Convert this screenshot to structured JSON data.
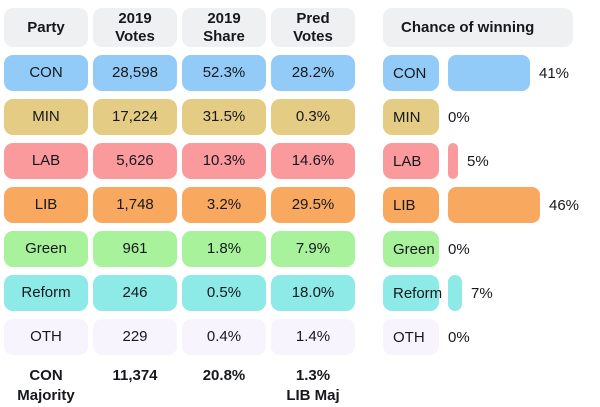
{
  "colors": {
    "CON": "#93cbf8",
    "MIN": "#e4cc85",
    "LAB": "#fb9a9d",
    "LIB": "#f9a95f",
    "Green": "#a7f29b",
    "Reform": "#8deae7",
    "OTH": "#f8f4fd",
    "header_bg": "#eef0f2",
    "text": "#16181c"
  },
  "table": {
    "headers": [
      {
        "line1": "Party",
        "line2": ""
      },
      {
        "line1": "2019",
        "line2": "Votes"
      },
      {
        "line1": "2019",
        "line2": "Share"
      },
      {
        "line1": "Pred",
        "line2": "Votes"
      }
    ],
    "rows": [
      {
        "party": "CON",
        "votes": "28,598",
        "share": "52.3%",
        "pred": "28.2%"
      },
      {
        "party": "MIN",
        "votes": "17,224",
        "share": "31.5%",
        "pred": "0.3%"
      },
      {
        "party": "LAB",
        "votes": "5,626",
        "share": "10.3%",
        "pred": "14.6%"
      },
      {
        "party": "LIB",
        "votes": "1,748",
        "share": "3.2%",
        "pred": "29.5%"
      },
      {
        "party": "Green",
        "votes": "961",
        "share": "1.8%",
        "pred": "7.9%"
      },
      {
        "party": "Reform",
        "votes": "246",
        "share": "0.5%",
        "pred": "18.0%"
      },
      {
        "party": "OTH",
        "votes": "229",
        "share": "0.4%",
        "pred": "1.4%"
      }
    ],
    "footer": {
      "label_line1": "CON",
      "label_line2": "Majority",
      "votes": "11,374",
      "share": "20.8%",
      "pred_line1": "1.3%",
      "pred_line2": "LIB Maj"
    }
  },
  "chart_data": {
    "type": "bar",
    "title": "Chance of winning",
    "orientation": "horizontal",
    "categories": [
      "CON",
      "MIN",
      "LAB",
      "LIB",
      "Green",
      "Reform",
      "OTH"
    ],
    "values": [
      41,
      0,
      5,
      46,
      0,
      7,
      0
    ],
    "labels": [
      "41%",
      "0%",
      "5%",
      "46%",
      "0%",
      "7%",
      "0%"
    ],
    "bar_colors": [
      "#93cbf8",
      "#e4cc85",
      "#fb9a9d",
      "#f9a95f",
      "#a7f29b",
      "#8deae7",
      "#f8f4fd"
    ],
    "xlim": [
      0,
      50
    ],
    "grid": false,
    "legend": false
  }
}
